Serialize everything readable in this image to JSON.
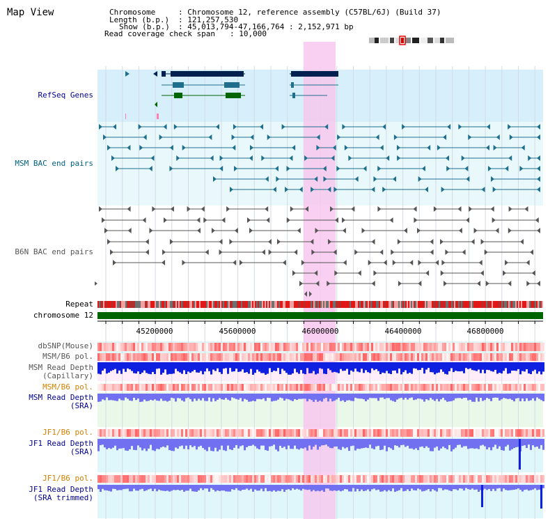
{
  "title": "Map View",
  "info": {
    "chromosome_key": "Chromosome",
    "chromosome_val": ": Chromosome 12, reference assembly (C57BL/6J) (Build 37)",
    "length_key": "Length (b.p.)",
    "length_val": ": 121,257,530",
    "show_key": "Show (b.p.)",
    "show_val": ": 45,013,794-47,166,764 : 2,152,971 bp",
    "span_key": "Read coverage check span",
    "span_val": ": 10,000"
  },
  "tracks": {
    "refseq": "RefSeq Genes",
    "msm_bac": "MSM BAC end pairs",
    "b6n_bac": "B6N BAC end pairs",
    "repeat": "Repeat",
    "chromosome": "chromosome 12",
    "dbsnp": "dbSNP(Mouse)",
    "msm_b6_pol_1": "MSM/B6 pol.",
    "msm_read_depth_cap_1": "MSM Read Depth",
    "msm_read_depth_cap_2": "(Capillary)",
    "msm_b6_pol_2": "MSM/B6 pol.",
    "msm_read_depth_sra_1": "MSM Read Depth",
    "msm_read_depth_sra_2": "(SRA)",
    "jf1_b6_pol_1": "JF1/B6 pol.",
    "jf1_read_depth_sra_1": "JF1 Read Depth",
    "jf1_read_depth_sra_2": "(SRA)",
    "jf1_b6_pol_2": "JF1/B6 pol.",
    "jf1_read_depth_trim_1": "JF1 Read Depth",
    "jf1_read_depth_trim_2": "(SRA trimmed)"
  },
  "axis_ticks": [
    "45200000",
    "45600000",
    "46000000",
    "46400000",
    "46800000"
  ],
  "colors": {
    "highlight": "#f7c4ee",
    "refseq_bg": "#d6effa",
    "track_bg": "#e8f8fb",
    "navy": "#00204f",
    "teal": "#1e6e8c",
    "gray": "#555555",
    "green": "#006400",
    "red": "#e02020",
    "blue": "#1020e0",
    "periwinkle": "#7070f0",
    "label_blue": "#000090",
    "label_teal": "#006080",
    "label_orange": "#d08000"
  }
}
